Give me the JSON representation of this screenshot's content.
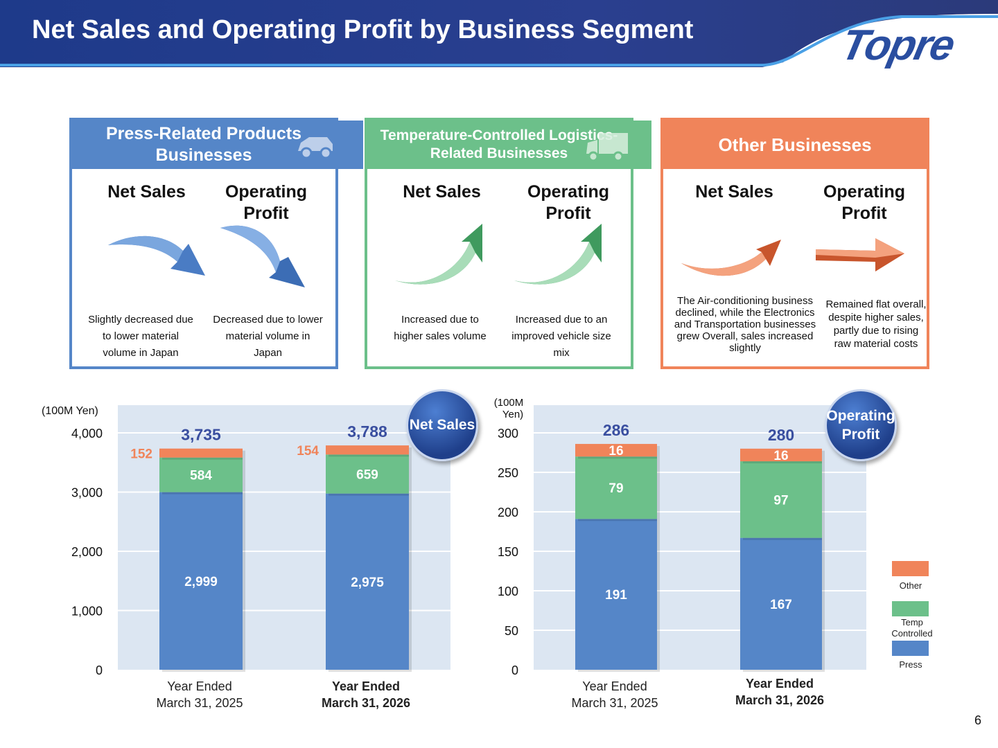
{
  "title": "Net Sales and Operating Profit by Business Segment",
  "logo_text": "Topre",
  "page_number": "6",
  "colors": {
    "press": "#5586c8",
    "temp": "#6cc08a",
    "other": "#f0845a",
    "total_label": "#3a4fa0",
    "plot_bg": "#dce6f2"
  },
  "segments": [
    {
      "title": "Press-Related Products Businesses",
      "icon": "car-icon",
      "net_sales_label": "Net Sales",
      "op_profit_label": "Operating Profit",
      "net_sales_trend": "decrease",
      "op_profit_trend": "decrease",
      "net_sales_desc": "Slightly decreased due to lower material volume in Japan",
      "op_profit_desc": "Decreased due to lower material volume in Japan"
    },
    {
      "title": "Temperature-Controlled Logistics-Related Businesses",
      "icon": "truck-icon",
      "net_sales_label": "Net Sales",
      "op_profit_label": "Operating Profit",
      "net_sales_trend": "increase",
      "op_profit_trend": "increase",
      "net_sales_desc": "Increased due to higher sales volume",
      "op_profit_desc": "Increased due to an improved vehicle size mix"
    },
    {
      "title": "Other Businesses",
      "net_sales_label": "Net Sales",
      "op_profit_label": "Operating Profit",
      "net_sales_trend": "increase",
      "op_profit_trend": "flat",
      "net_sales_desc": "The Air-conditioning business declined, while the Electronics and Transportation businesses grew Overall, sales increased slightly",
      "op_profit_desc": "Remained flat overall, despite higher sales, partly due to rising raw material costs"
    }
  ],
  "badges": {
    "net_sales": "Net Sales",
    "op_profit": "Operating Profit"
  },
  "legend": [
    "Other",
    "Temp Controlled",
    "Press"
  ],
  "chart_data": [
    {
      "type": "bar",
      "stacked": true,
      "unit_label": "(100M Yen)",
      "categories": [
        "Year Ended March 31, 2025",
        "Year Ended March 31, 2026"
      ],
      "category_lines": [
        [
          "Year Ended",
          "March 31, 2025"
        ],
        [
          "Year Ended",
          "March 31, 2026"
        ]
      ],
      "bold_category": 1,
      "series": [
        {
          "name": "Press",
          "values": [
            2999,
            2975
          ],
          "labels": [
            "2,999",
            "2,975"
          ]
        },
        {
          "name": "Temp Controlled",
          "values": [
            584,
            659
          ],
          "labels": [
            "584",
            "659"
          ]
        },
        {
          "name": "Other",
          "values": [
            152,
            154
          ],
          "labels": [
            "152",
            "154"
          ]
        }
      ],
      "totals": [
        "3,735",
        "3,788"
      ],
      "ylim": [
        0,
        4000
      ],
      "yticks": [
        0,
        1000,
        2000,
        3000,
        4000
      ],
      "ytick_labels": [
        "0",
        "1,000",
        "2,000",
        "3,000",
        "4,000"
      ],
      "grid": true
    },
    {
      "type": "bar",
      "stacked": true,
      "unit_label": "(100M Yen)",
      "categories": [
        "Year Ended March 31, 2025",
        "Year Ended March 31, 2026"
      ],
      "category_lines": [
        [
          "Year Ended",
          "March 31, 2025"
        ],
        [
          "Year Ended",
          "March 31, 2026"
        ]
      ],
      "bold_category": 1,
      "series": [
        {
          "name": "Press",
          "values": [
            191,
            167
          ],
          "labels": [
            "191",
            "167"
          ]
        },
        {
          "name": "Temp Controlled",
          "values": [
            79,
            97
          ],
          "labels": [
            "79",
            "97"
          ]
        },
        {
          "name": "Other",
          "values": [
            16,
            16
          ],
          "labels": [
            "16",
            "16"
          ]
        }
      ],
      "totals": [
        "286",
        "280"
      ],
      "ylim": [
        0,
        300
      ],
      "yticks": [
        0,
        50,
        100,
        150,
        200,
        250,
        300
      ],
      "ytick_labels": [
        "0",
        "50",
        "100",
        "150",
        "200",
        "250",
        "300"
      ],
      "grid": true
    }
  ]
}
